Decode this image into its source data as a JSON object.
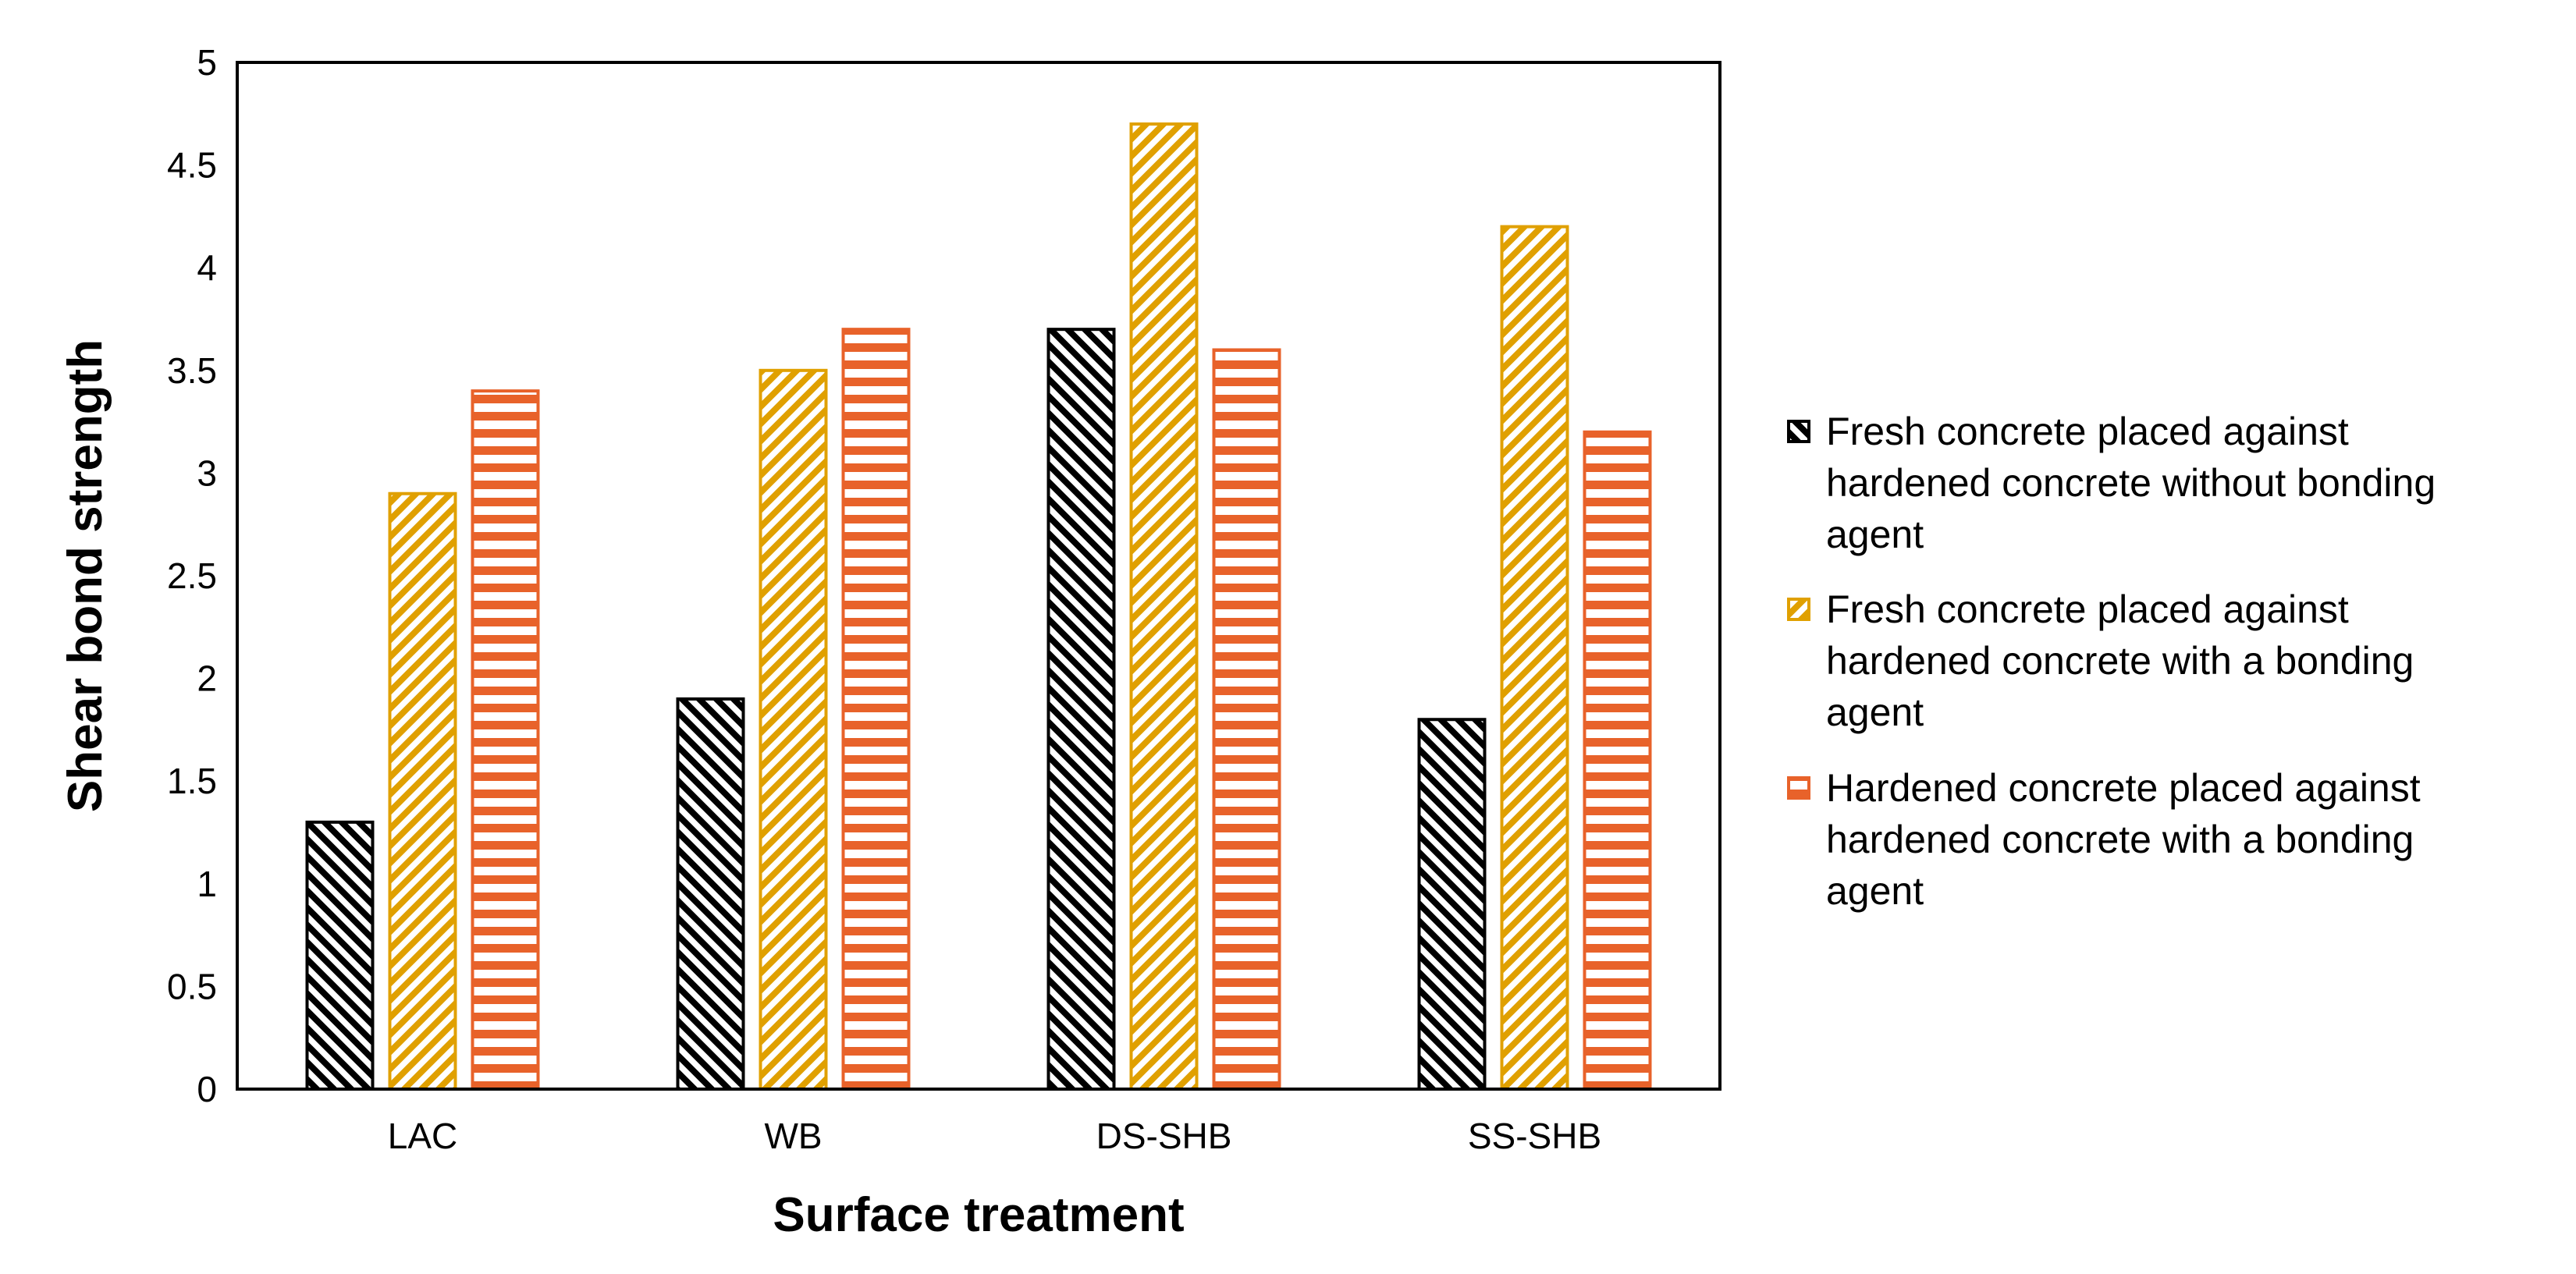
{
  "chart_data": {
    "type": "bar",
    "title": "",
    "xlabel": "Surface treatment",
    "ylabel": "Shear bond strength",
    "categories": [
      "LAC",
      "WB",
      "DS-SHB",
      "SS-SHB"
    ],
    "series": [
      {
        "name": "Fresh concrete placed against hardened concrete without bonding agent",
        "label_lines": [
          "Fresh concrete placed against",
          "hardened concrete without bonding",
          "agent"
        ],
        "color": "#000000",
        "pattern": "diagonal-down",
        "values": [
          1.3,
          1.9,
          3.7,
          1.8
        ]
      },
      {
        "name": "Fresh concrete placed against hardened concrete with a bonding agent",
        "label_lines": [
          "Fresh concrete placed against",
          "hardened concrete with a bonding",
          "agent"
        ],
        "color": "#E0A000",
        "pattern": "diagonal-up",
        "values": [
          2.9,
          3.5,
          4.7,
          4.2
        ]
      },
      {
        "name": "Hardened concrete placed against hardened concrete with a bonding agent",
        "label_lines": [
          "Hardened concrete placed against",
          "hardened concrete with a bonding",
          "agent"
        ],
        "color": "#E8622A",
        "pattern": "horizontal",
        "values": [
          3.4,
          3.7,
          3.6,
          3.2
        ]
      }
    ],
    "ylim": [
      0,
      5
    ],
    "yticks": [
      "0",
      "0.5",
      "1",
      "1.5",
      "2",
      "2.5",
      "3",
      "3.5",
      "4",
      "4.5",
      "5"
    ],
    "grid": false,
    "legend_position": "right"
  }
}
